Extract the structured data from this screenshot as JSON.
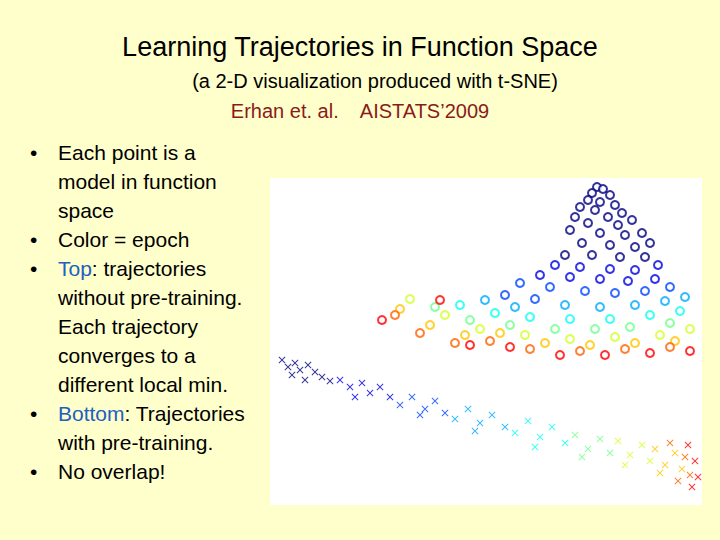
{
  "title": "Learning Trajectories in Function Space",
  "subtitle": "(a 2-D visualization produced with t-SNE)",
  "citation": "Erhan et. al.    AISTATS’2009",
  "bullets": [
    [
      {
        "text": "Each point is a model in function space"
      }
    ],
    [
      {
        "text": "Color = epoch"
      }
    ],
    [
      {
        "text": "Top",
        "color": "#2060c0"
      },
      {
        "text": ": trajectories without pre-training. Each trajectory converges to a different local min."
      }
    ],
    [
      {
        "text": "Bottom",
        "color": "#2060c0"
      },
      {
        "text": ": Trajectories with pre-training."
      }
    ],
    [
      {
        "text": "No overlap!"
      }
    ]
  ],
  "chart_data": {
    "type": "scatter",
    "xlim": [
      0,
      432
    ],
    "ylim": [
      0,
      327
    ],
    "tick_labels": false,
    "grid": false,
    "epoch_range": [
      1,
      10
    ],
    "series": [
      {
        "marker": "circle",
        "values": [
          [
            327,
            318,
            1
          ],
          [
            333,
            316,
            1
          ],
          [
            322,
            312,
            1
          ],
          [
            340,
            310,
            1
          ],
          [
            318,
            305,
            1
          ],
          [
            330,
            303,
            1
          ],
          [
            345,
            300,
            1
          ],
          [
            310,
            298,
            1
          ],
          [
            325,
            295,
            1
          ],
          [
            352,
            292,
            1
          ],
          [
            305,
            288,
            1
          ],
          [
            338,
            288,
            1
          ],
          [
            318,
            282,
            1
          ],
          [
            348,
            280,
            1
          ],
          [
            362,
            285,
            1
          ],
          [
            300,
            275,
            1
          ],
          [
            330,
            272,
            1
          ],
          [
            355,
            270,
            1
          ],
          [
            372,
            272,
            1
          ],
          [
            312,
            262,
            1
          ],
          [
            340,
            260,
            1
          ],
          [
            365,
            258,
            1
          ],
          [
            380,
            262,
            1
          ],
          [
            295,
            250,
            1
          ],
          [
            322,
            250,
            1
          ],
          [
            350,
            248,
            1
          ],
          [
            375,
            248,
            1
          ],
          [
            285,
            240,
            2
          ],
          [
            310,
            238,
            2
          ],
          [
            340,
            236,
            2
          ],
          [
            365,
            235,
            2
          ],
          [
            388,
            240,
            2
          ],
          [
            270,
            230,
            2
          ],
          [
            300,
            228,
            2
          ],
          [
            330,
            226,
            2
          ],
          [
            358,
            224,
            2
          ],
          [
            385,
            226,
            2
          ],
          [
            250,
            222,
            3
          ],
          [
            280,
            218,
            3
          ],
          [
            315,
            214,
            3
          ],
          [
            345,
            212,
            3
          ],
          [
            375,
            214,
            3
          ],
          [
            400,
            218,
            3
          ],
          [
            235,
            210,
            3
          ],
          [
            265,
            206,
            3
          ],
          [
            215,
            205,
            4
          ],
          [
            245,
            198,
            4
          ],
          [
            295,
            200,
            4
          ],
          [
            330,
            198,
            4
          ],
          [
            365,
            200,
            4
          ],
          [
            395,
            204,
            4
          ],
          [
            415,
            208,
            4
          ],
          [
            190,
            200,
            5
          ],
          [
            225,
            192,
            5
          ],
          [
            260,
            188,
            5
          ],
          [
            300,
            186,
            5
          ],
          [
            340,
            186,
            5
          ],
          [
            380,
            190,
            5
          ],
          [
            410,
            194,
            5
          ],
          [
            165,
            198,
            6
          ],
          [
            200,
            185,
            6
          ],
          [
            240,
            180,
            6
          ],
          [
            285,
            176,
            6
          ],
          [
            325,
            176,
            6
          ],
          [
            360,
            178,
            6
          ],
          [
            400,
            182,
            6
          ],
          [
            140,
            206,
            7
          ],
          [
            175,
            190,
            7
          ],
          [
            210,
            176,
            7
          ],
          [
            255,
            170,
            7
          ],
          [
            300,
            166,
            7
          ],
          [
            345,
            168,
            7
          ],
          [
            390,
            170,
            7
          ],
          [
            420,
            176,
            7
          ],
          [
            130,
            196,
            8
          ],
          [
            160,
            180,
            8
          ],
          [
            195,
            170,
            8
          ],
          [
            230,
            172,
            8
          ],
          [
            275,
            162,
            8
          ],
          [
            320,
            160,
            8
          ],
          [
            365,
            162,
            8
          ],
          [
            405,
            164,
            8
          ],
          [
            125,
            190,
            9
          ],
          [
            150,
            172,
            9
          ],
          [
            185,
            162,
            9
          ],
          [
            220,
            164,
            9
          ],
          [
            260,
            156,
            9
          ],
          [
            310,
            154,
            9
          ],
          [
            355,
            156,
            9
          ],
          [
            400,
            158,
            9
          ],
          [
            112,
            185,
            10
          ],
          [
            170,
            205,
            10
          ],
          [
            200,
            160,
            10
          ],
          [
            240,
            158,
            10
          ],
          [
            290,
            150,
            10
          ],
          [
            335,
            150,
            10
          ],
          [
            380,
            152,
            10
          ],
          [
            420,
            154,
            10
          ]
        ]
      },
      {
        "marker": "x",
        "values": [
          [
            12,
            145,
            1
          ],
          [
            18,
            138,
            1
          ],
          [
            25,
            142,
            1
          ],
          [
            30,
            135,
            1
          ],
          [
            38,
            140,
            1
          ],
          [
            22,
            130,
            1
          ],
          [
            45,
            133,
            1
          ],
          [
            52,
            128,
            1
          ],
          [
            35,
            125,
            1
          ],
          [
            60,
            124,
            1
          ],
          [
            70,
            125,
            2
          ],
          [
            80,
            118,
            2
          ],
          [
            92,
            122,
            2
          ],
          [
            100,
            112,
            2
          ],
          [
            110,
            118,
            2
          ],
          [
            85,
            108,
            2
          ],
          [
            120,
            108,
            2
          ],
          [
            130,
            100,
            3
          ],
          [
            142,
            108,
            3
          ],
          [
            155,
            96,
            3
          ],
          [
            165,
            104,
            3
          ],
          [
            150,
            90,
            3
          ],
          [
            175,
            92,
            3
          ],
          [
            185,
            86,
            4
          ],
          [
            198,
            96,
            4
          ],
          [
            210,
            82,
            4
          ],
          [
            222,
            90,
            4
          ],
          [
            205,
            74,
            4
          ],
          [
            235,
            78,
            4
          ],
          [
            245,
            72,
            5
          ],
          [
            258,
            84,
            5
          ],
          [
            270,
            68,
            5
          ],
          [
            282,
            78,
            5
          ],
          [
            265,
            58,
            5
          ],
          [
            295,
            62,
            5
          ],
          [
            305,
            70,
            6
          ],
          [
            318,
            56,
            6
          ],
          [
            330,
            66,
            6
          ],
          [
            312,
            48,
            6
          ],
          [
            340,
            52,
            6
          ],
          [
            348,
            64,
            7
          ],
          [
            360,
            50,
            7
          ],
          [
            372,
            60,
            7
          ],
          [
            355,
            40,
            7
          ],
          [
            380,
            44,
            7
          ],
          [
            385,
            56,
            8
          ],
          [
            395,
            40,
            8
          ],
          [
            405,
            52,
            8
          ],
          [
            390,
            32,
            8
          ],
          [
            412,
            36,
            8
          ],
          [
            400,
            62,
            9
          ],
          [
            415,
            48,
            9
          ],
          [
            420,
            30,
            9
          ],
          [
            408,
            24,
            9
          ],
          [
            418,
            60,
            10
          ],
          [
            425,
            44,
            10
          ],
          [
            428,
            28,
            10
          ],
          [
            422,
            18,
            10
          ]
        ]
      }
    ]
  }
}
